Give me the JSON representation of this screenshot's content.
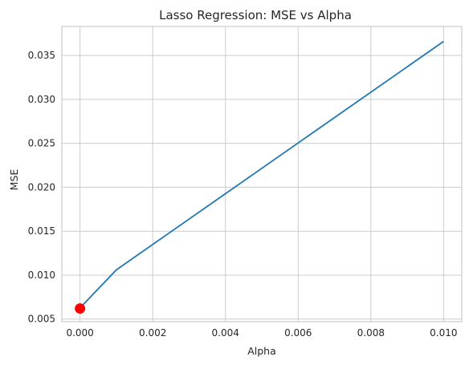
{
  "chart_data": {
    "type": "line",
    "title": "Lasso Regression: MSE vs Alpha",
    "xlabel": "Alpha",
    "ylabel": "MSE",
    "xlim": [
      -0.0005,
      0.0105
    ],
    "ylim": [
      0.0047,
      0.0383
    ],
    "x_ticks": [
      0.0,
      0.002,
      0.004,
      0.006,
      0.008,
      0.01
    ],
    "x_tick_labels": [
      "0.000",
      "0.002",
      "0.004",
      "0.006",
      "0.008",
      "0.010"
    ],
    "y_ticks": [
      0.005,
      0.01,
      0.015,
      0.02,
      0.025,
      0.03,
      0.035
    ],
    "y_tick_labels": [
      "0.005",
      "0.010",
      "0.015",
      "0.020",
      "0.025",
      "0.030",
      "0.035"
    ],
    "grid": true,
    "series": [
      {
        "x": [
          0.0,
          0.0001,
          0.001,
          0.01
        ],
        "y": [
          0.0062,
          0.0067,
          0.0106,
          0.0366
        ],
        "color": "#1f77b4"
      }
    ],
    "highlight_point": {
      "x": 0.0,
      "y": 0.0062,
      "color": "#ff0000"
    },
    "colors": {
      "grid": "#cccccc",
      "axes_edge": "#cccccc",
      "text": "#262626"
    }
  }
}
